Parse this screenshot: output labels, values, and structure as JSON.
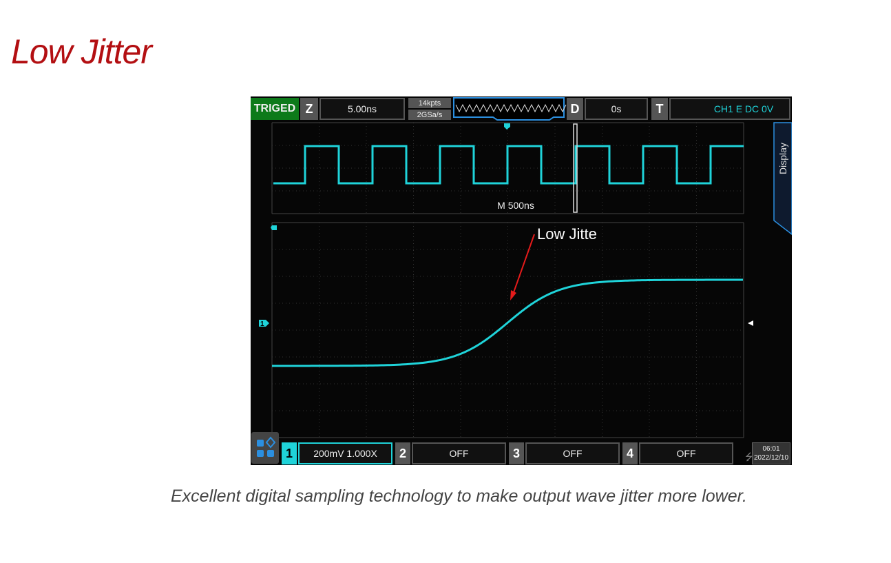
{
  "page": {
    "title": "Low Jitter",
    "caption": "Excellent digital sampling technology to make output wave jitter more lower."
  },
  "scope": {
    "status": "TRIGED",
    "timebase": {
      "label": "Z",
      "value": "5.00ns"
    },
    "memory": {
      "depth": "14kpts",
      "rate": "2GSa/s"
    },
    "delay": {
      "label": "D",
      "value": "0s"
    },
    "trigger": {
      "label": "T",
      "value": "CH1 E DC 0V",
      "icon": "rising-edge-icon"
    },
    "overview_label": "M  500ns",
    "side_tab": "Display",
    "annotation": "Low Jitte",
    "channels": [
      {
        "num": "1",
        "value": "200mV 1.000X",
        "active": true
      },
      {
        "num": "2",
        "value": "OFF"
      },
      {
        "num": "3",
        "value": "OFF"
      },
      {
        "num": "4",
        "value": "OFF"
      }
    ],
    "clock": {
      "time": "06:01",
      "date": "2022/12/10"
    },
    "colors": {
      "trace": "#1fd3d9",
      "status": "#0d7a1a",
      "accent": "#2b8fe0",
      "annotation": "#e51b1b"
    }
  }
}
